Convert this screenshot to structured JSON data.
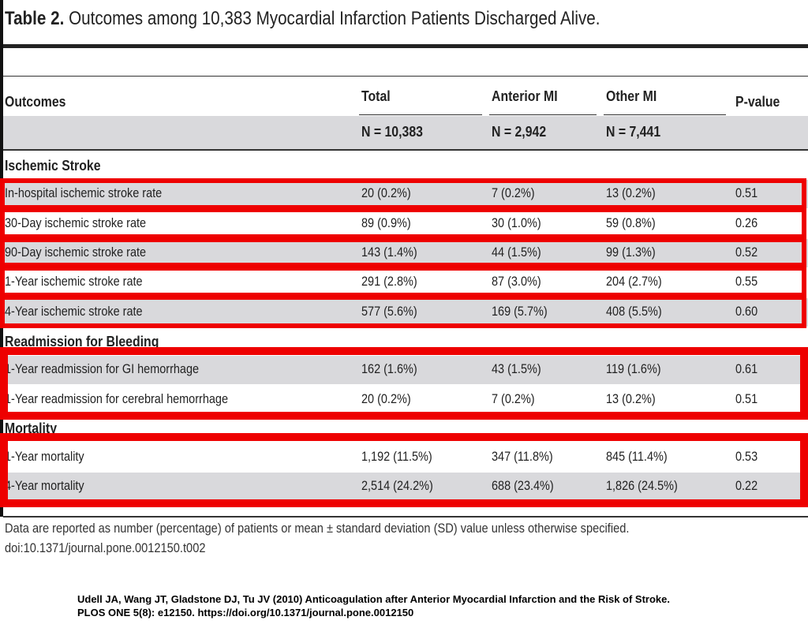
{
  "table": {
    "label": "Table 2.",
    "title": "Outcomes among 10,383 Myocardial Infarction Patients Discharged Alive.",
    "columns": [
      "Outcomes",
      "Total",
      "Anterior MI",
      "Other MI",
      "P-value"
    ],
    "n_values": [
      "N = 10,383",
      "N = 2,942",
      "N = 7,441"
    ],
    "sections": [
      {
        "name": "Ischemic Stroke",
        "rows": [
          [
            "In-hospital ischemic stroke rate",
            "20 (0.2%)",
            "7 (0.2%)",
            "13 (0.2%)",
            "0.51"
          ],
          [
            "30-Day ischemic stroke rate",
            "89 (0.9%)",
            "30 (1.0%)",
            "59 (0.8%)",
            "0.26"
          ],
          [
            "90-Day ischemic stroke rate",
            "143 (1.4%)",
            "44 (1.5%)",
            "99 (1.3%)",
            "0.52"
          ],
          [
            "1-Year ischemic stroke rate",
            "291 (2.8%)",
            "87 (3.0%)",
            "204 (2.7%)",
            "0.55"
          ],
          [
            "4-Year ischemic stroke rate",
            "577 (5.6%)",
            "169 (5.7%)",
            "408 (5.5%)",
            "0.60"
          ]
        ]
      },
      {
        "name": "Readmission for Bleeding",
        "rows": [
          [
            "1-Year readmission for GI hemorrhage",
            "162 (1.6%)",
            "43 (1.5%)",
            "119 (1.6%)",
            "0.61"
          ],
          [
            "1-Year readmission for cerebral hemorrhage",
            "20 (0.2%)",
            "7 (0.2%)",
            "13 (0.2%)",
            "0.51"
          ]
        ]
      },
      {
        "name": "Mortality",
        "rows": [
          [
            "1-Year mortality",
            "1,192 (11.5%)",
            "347 (11.8%)",
            "845 (11.4%)",
            "0.53"
          ],
          [
            "4-Year mortality",
            "2,514 (24.2%)",
            "688 (23.4%)",
            "1,826 (24.5%)",
            "0.22"
          ]
        ]
      }
    ],
    "footnote": "Data are reported as number (percentage) of patients or mean ± standard deviation (SD) value unless otherwise specified.",
    "doi": "doi:10.1371/journal.pone.0012150.t002"
  },
  "citation": {
    "line1": "Udell JA, Wang JT, Gladstone DJ, Tu JV (2010) Anticoagulation after Anterior Myocardial Infarction and the Risk of Stroke.",
    "line2": "PLOS ONE 5(8): e12150. https://doi.org/10.1371/journal.pone.0012150"
  },
  "colors": {
    "highlight": "#ee0000",
    "band": "#d9d9dc"
  }
}
